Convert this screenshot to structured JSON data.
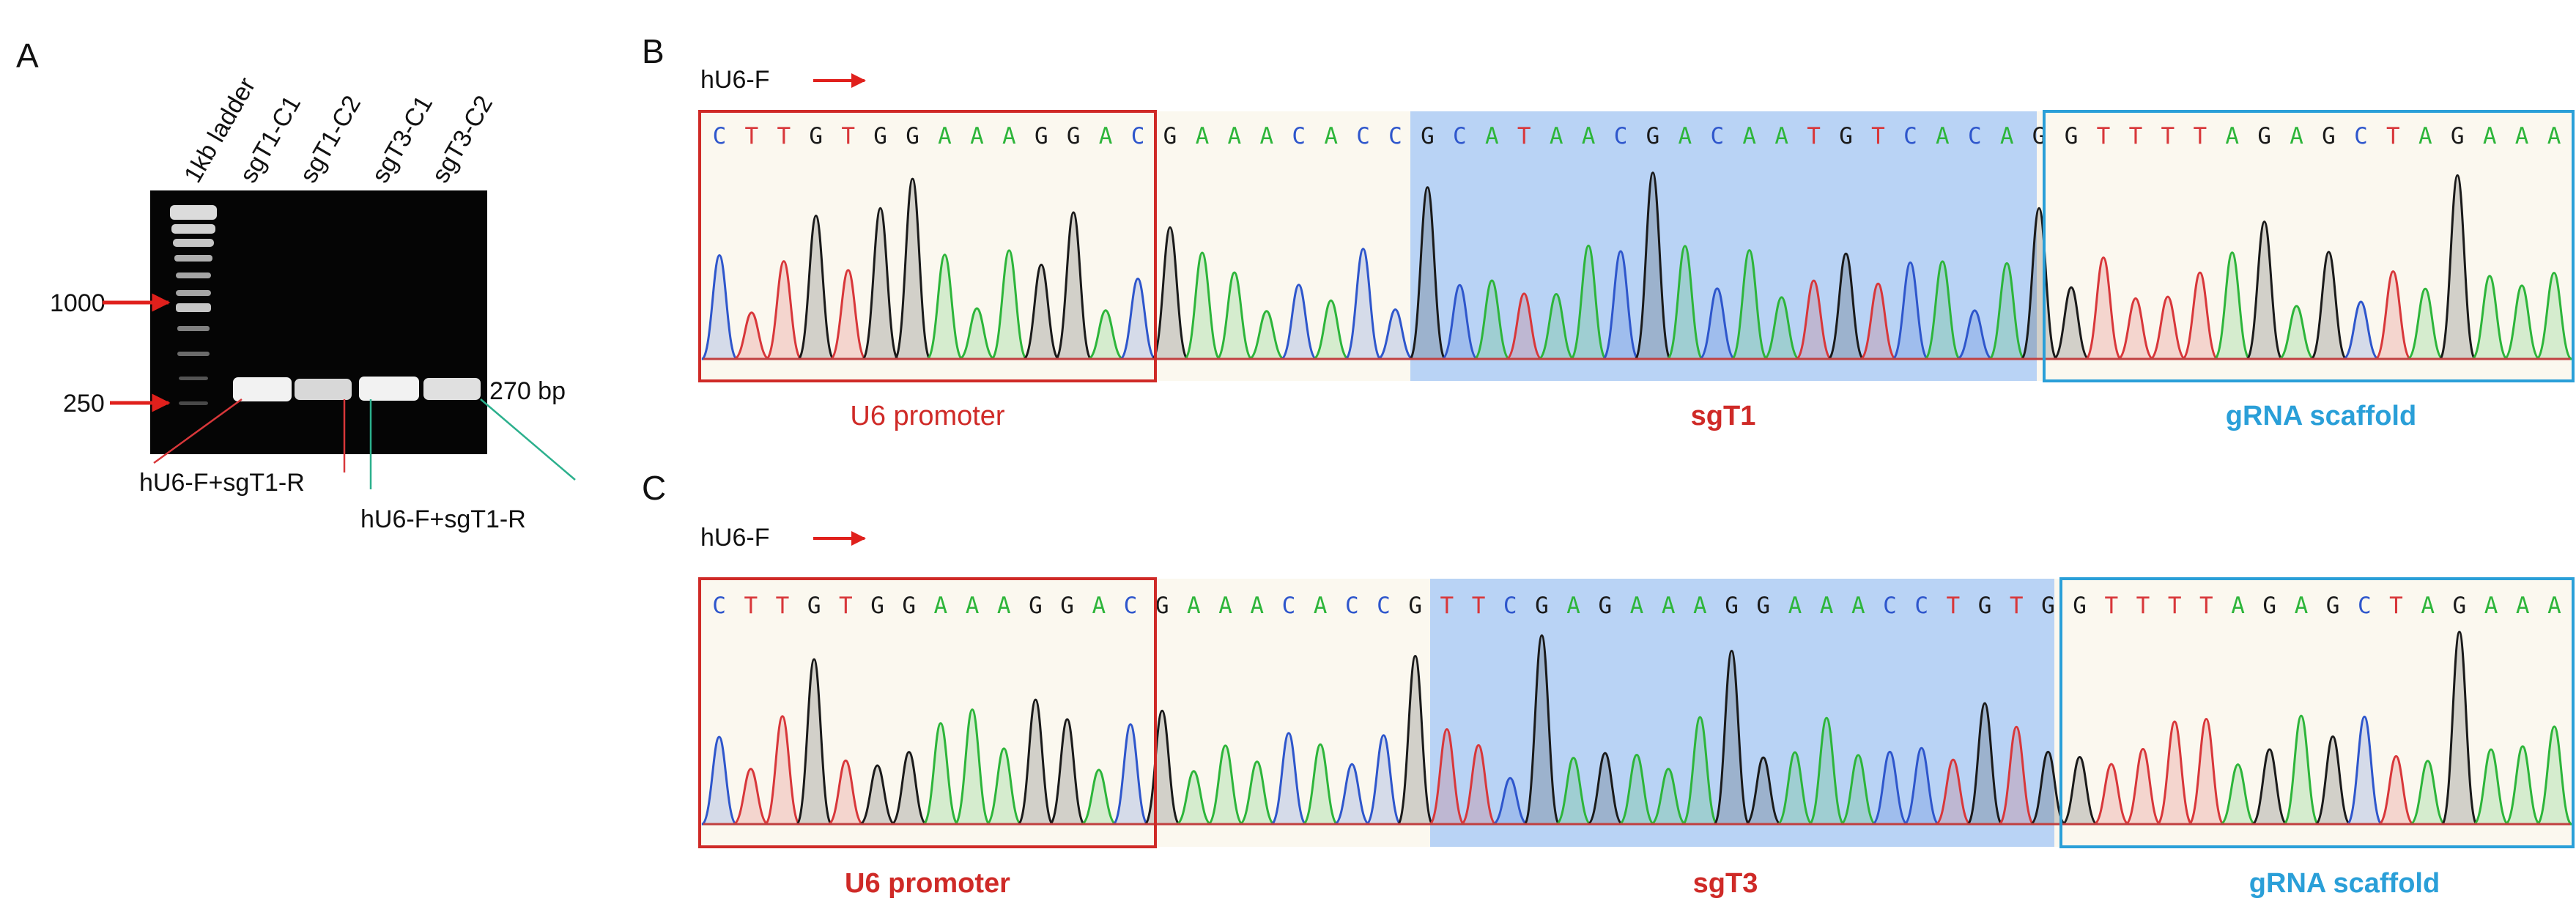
{
  "panels": {
    "A": {
      "letter": "A",
      "lane_labels": [
        "1kb ladder",
        "sgT1-C1",
        "sgT1-C2",
        "sgT3-C1",
        "sgT3-C2"
      ],
      "marker_labels": [
        "1000",
        "250"
      ],
      "band_size_label": "270 bp",
      "primer_labels": [
        "hU6-F+sgT1-R",
        "hU6-F+sgT1-R"
      ]
    },
    "B": {
      "letter": "B",
      "primer": "hU6-F",
      "bases": [
        "C",
        "T",
        "T",
        "G",
        "T",
        "G",
        "G",
        "A",
        "A",
        "A",
        "G",
        "G",
        "A",
        "C",
        "G",
        "A",
        "A",
        "A",
        "C",
        "A",
        "C",
        "C",
        "G",
        "C",
        "A",
        "T",
        "A",
        "A",
        "C",
        "G",
        "A",
        "C",
        "A",
        "A",
        "T",
        "G",
        "T",
        "C",
        "A",
        "C",
        "A",
        "G",
        "G",
        "T",
        "T",
        "T",
        "T",
        "A",
        "G",
        "A",
        "G",
        "C",
        "T",
        "A",
        "G",
        "A",
        "A",
        "A"
      ],
      "regions": [
        {
          "label": "U6 promoter",
          "color": "#cf2a27",
          "bold": false
        },
        {
          "label": "sgT1",
          "color": "#cf2a27",
          "bold": true
        },
        {
          "label": "gRNA scaffold",
          "color": "#2a9fd8",
          "bold": true
        }
      ]
    },
    "C": {
      "letter": "C",
      "primer": "hU6-F",
      "bases": [
        "C",
        "T",
        "T",
        "G",
        "T",
        "G",
        "G",
        "A",
        "A",
        "A",
        "G",
        "G",
        "A",
        "C",
        "G",
        "A",
        "A",
        "A",
        "C",
        "A",
        "C",
        "C",
        "G",
        "T",
        "T",
        "C",
        "G",
        "A",
        "G",
        "A",
        "A",
        "A",
        "G",
        "G",
        "A",
        "A",
        "A",
        "C",
        "C",
        "T",
        "G",
        "T",
        "G",
        "G",
        "T",
        "T",
        "T",
        "T",
        "A",
        "G",
        "A",
        "G",
        "C",
        "T",
        "A",
        "G",
        "A",
        "A",
        "A"
      ],
      "regions": [
        {
          "label": "U6 promoter",
          "color": "#cf2a27",
          "bold": true
        },
        {
          "label": "sgT3",
          "color": "#cf2a27",
          "bold": true
        },
        {
          "label": "gRNA scaffold",
          "color": "#2a9fd8",
          "bold": true
        }
      ]
    }
  },
  "base_colors": {
    "A": "#2db53a",
    "C": "#2e56cc",
    "G": "#1a1a1a",
    "T": "#d8373a"
  },
  "box_colors": {
    "promoter": "#cf2a27",
    "scaffold": "#2a9fd8",
    "arrow": "#e0201c"
  }
}
